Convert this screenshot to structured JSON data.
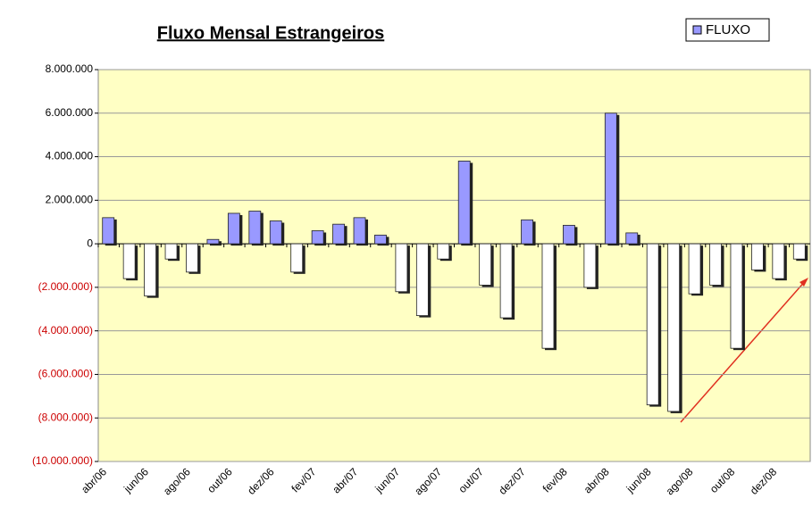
{
  "chart_data": {
    "type": "bar",
    "title": "Fluxo Mensal Estrangeiros",
    "categories": [
      "abr/06",
      null,
      "jun/06",
      null,
      "ago/06",
      null,
      "out/06",
      null,
      "dez/06",
      null,
      "fev/07",
      null,
      "abr/07",
      null,
      "jun/07",
      null,
      "ago/07",
      null,
      "out/07",
      null,
      "dez/07",
      null,
      "fev/08",
      null,
      "abr/08",
      null,
      "jun/08",
      null,
      "ago/08",
      null,
      "out/08",
      null,
      "dez/08",
      null
    ],
    "series": [
      {
        "name": "FLUXO",
        "color": "#9999ff",
        "negative_color": "#ffffff",
        "values": [
          1200000,
          -1600000,
          -2400000,
          -700000,
          -1300000,
          200000,
          1400000,
          1500000,
          1050000,
          -1300000,
          600000,
          900000,
          1200000,
          400000,
          -2200000,
          -3300000,
          -700000,
          3800000,
          -1900000,
          -3400000,
          1100000,
          -4800000,
          850000,
          -2000000,
          6000000,
          500000,
          -7400000,
          -7700000,
          -2300000,
          -1900000,
          -4800000,
          -1200000,
          -1600000,
          -700000
        ]
      }
    ],
    "ylim": [
      -10000000,
      8000000
    ],
    "yticks": [
      {
        "value": -10000000,
        "label": "(10.000.000)"
      },
      {
        "value": -8000000,
        "label": "(8.000.000)"
      },
      {
        "value": -6000000,
        "label": "(6.000.000)"
      },
      {
        "value": -4000000,
        "label": "(4.000.000)"
      },
      {
        "value": -2000000,
        "label": "(2.000.000)"
      },
      0,
      {
        "value": 2000000,
        "label": "2.000.000"
      },
      {
        "value": 4000000,
        "label": "4.000.000"
      },
      {
        "value": 6000000,
        "label": "6.000.000"
      },
      {
        "value": 8000000,
        "label": "8.000.000"
      }
    ],
    "negative_tick_color": "#cc0000",
    "grid": true,
    "legend": "top-right"
  }
}
